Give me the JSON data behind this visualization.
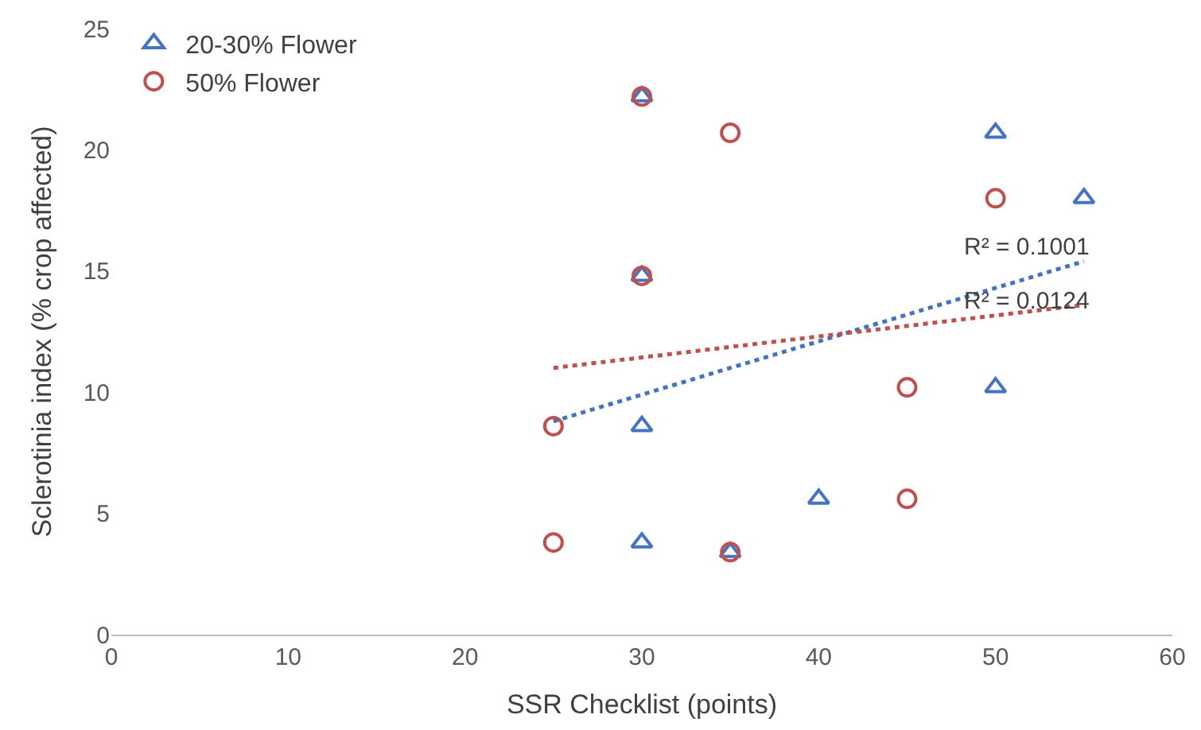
{
  "chart_data": {
    "type": "scatter",
    "xlabel": "SSR Checklist (points)",
    "ylabel": "Sclerotinia index (% crop affected)",
    "xlim": [
      0,
      60
    ],
    "xticks": [
      0,
      10,
      20,
      30,
      40,
      50,
      60
    ],
    "ylim": [
      0,
      25
    ],
    "yticks": [
      0,
      5,
      10,
      15,
      20,
      25
    ],
    "legend": "top left",
    "series": [
      {
        "name": "20-30% Flower",
        "color": "#4472c4",
        "marker": "triangle",
        "x": [
          30,
          30,
          30,
          30,
          35,
          40,
          50,
          50,
          55
        ],
        "values": [
          22.2,
          14.8,
          8.6,
          3.8,
          3.4,
          5.6,
          20.7,
          10.2,
          18.0
        ]
      },
      {
        "name": "50% Flower",
        "color": "#c0504d",
        "marker": "circle",
        "x": [
          25,
          25,
          30,
          30,
          35,
          35,
          45,
          45,
          50
        ],
        "values": [
          8.6,
          3.8,
          22.2,
          14.8,
          20.7,
          3.4,
          10.2,
          5.6,
          18.0
        ]
      },
      {
        "type": "line",
        "color": "#4472c4",
        "line_style": "dotted",
        "x": [
          25,
          55
        ],
        "values": [
          8.8,
          15.4
        ]
      },
      {
        "type": "line",
        "color": "#c0504d",
        "line_style": "dotted",
        "x": [
          25,
          55
        ],
        "values": [
          11.0,
          13.6
        ]
      }
    ],
    "annotations": [
      "R² = 0.1001",
      "R² = 0.0124"
    ]
  }
}
